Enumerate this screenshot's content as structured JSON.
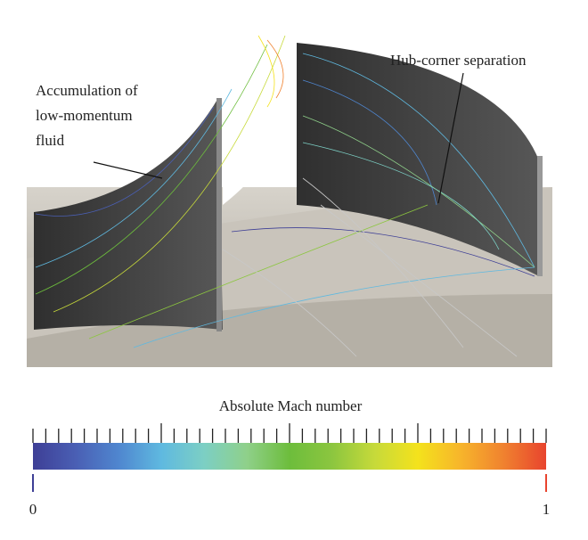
{
  "annotations": [
    {
      "lines": [
        "Accumulation of",
        "low-momentum",
        "fluid"
      ]
    },
    {
      "lines": [
        "Hub-corner separation"
      ]
    }
  ],
  "colorbar": {
    "label": "Absolute Mach number",
    "range": [
      0,
      1
    ],
    "ticks": [
      0,
      1
    ],
    "colors": [
      "#3e3f96",
      "#4a5fb4",
      "#4f86cf",
      "#5fb9e0",
      "#7ccfc4",
      "#8fd08a",
      "#6dbd3c",
      "#8cc63f",
      "#c7da3a",
      "#f4e21c",
      "#f7b52b",
      "#f0822f",
      "#e8442e"
    ]
  }
}
